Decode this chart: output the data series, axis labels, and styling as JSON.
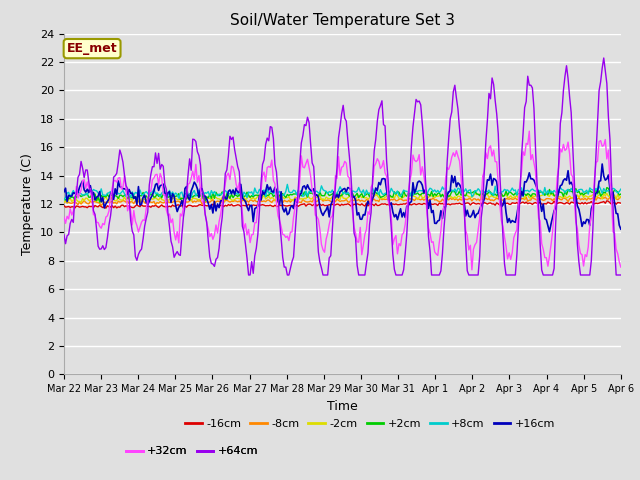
{
  "title": "Soil/Water Temperature Set 3",
  "ylabel": "Temperature (C)",
  "xlabel": "Time",
  "ylim": [
    0,
    24
  ],
  "yticks": [
    0,
    2,
    4,
    6,
    8,
    10,
    12,
    14,
    16,
    18,
    20,
    22,
    24
  ],
  "x_labels": [
    "Mar 22",
    "Mar 23",
    "Mar 24",
    "Mar 25",
    "Mar 26",
    "Mar 27",
    "Mar 28",
    "Mar 29",
    "Mar 30",
    "Mar 31",
    "Apr 1",
    "Apr 2",
    "Apr 3",
    "Apr 4",
    "Apr 5",
    "Apr 6"
  ],
  "series": {
    "-16cm": {
      "color": "#dd0000",
      "lw": 1.0
    },
    "-8cm": {
      "color": "#ff8800",
      "lw": 1.0
    },
    "-2cm": {
      "color": "#dddd00",
      "lw": 1.0
    },
    "+2cm": {
      "color": "#00cc00",
      "lw": 1.0
    },
    "+8cm": {
      "color": "#00cccc",
      "lw": 1.0
    },
    "+16cm": {
      "color": "#0000bb",
      "lw": 1.2
    },
    "+32cm": {
      "color": "#ff44ff",
      "lw": 1.0
    },
    "+64cm": {
      "color": "#9900ee",
      "lw": 1.0
    }
  },
  "annotation_text": "EE_met",
  "bg_color": "#e0e0e0",
  "plot_bg": "#e0e0e0",
  "fig_width": 6.4,
  "fig_height": 4.8,
  "dpi": 100
}
